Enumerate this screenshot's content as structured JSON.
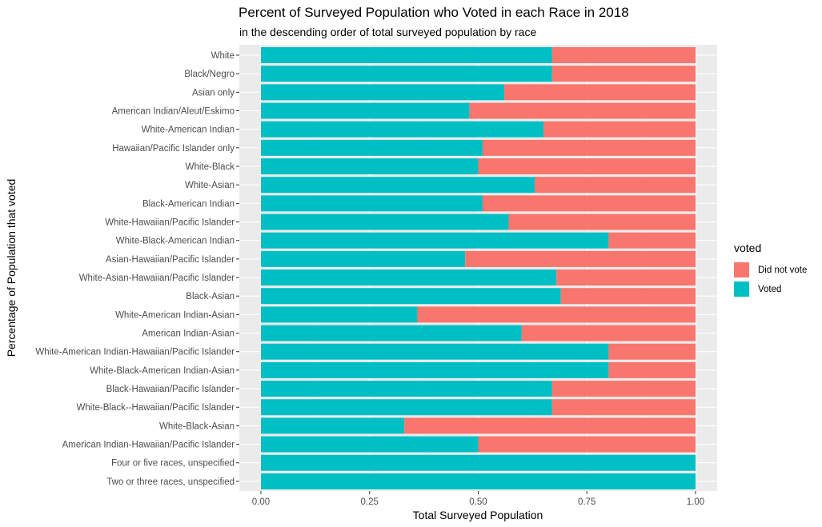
{
  "chart_data": {
    "type": "bar",
    "orientation": "horizontal",
    "stacked": true,
    "title": "Percent of Surveyed Population who Voted in each Race in 2018",
    "subtitle": "in the descending order of total surveyed population by race",
    "xlabel": "Total Surveyed Population",
    "ylabel": "Percentage of Population that voted",
    "xlim": [
      0,
      1
    ],
    "xticks": [
      "0.00",
      "0.25",
      "0.50",
      "0.75",
      "1.00"
    ],
    "grid": true,
    "legend_position": "right",
    "legend_title": "voted",
    "categories": [
      "White",
      "Black/Negro",
      "Asian only",
      "American Indian/Aleut/Eskimo",
      "White-American Indian",
      "Hawaiian/Pacific Islander only",
      "White-Black",
      "White-Asian",
      "Black-American Indian",
      "White-Hawaiian/Pacific Islander",
      "White-Black-American Indian",
      "Asian-Hawaiian/Pacific Islander",
      "White-Asian-Hawaiian/Pacific Islander",
      "Black-Asian",
      "White-American Indian-Asian",
      "American Indian-Asian",
      "White-American Indian-Hawaiian/Pacific Islander",
      "White-Black-American Indian-Asian",
      "Black-Hawaiian/Pacific Islander",
      "White-Black--Hawaiian/Pacific Islander",
      "White-Black-Asian",
      "American Indian-Hawaiian/Pacific Islander",
      "Four or five races, unspecified",
      "Two or three races, unspecified"
    ],
    "series": [
      {
        "name": "Voted",
        "color": "#00BFC4",
        "values": [
          0.67,
          0.67,
          0.56,
          0.48,
          0.65,
          0.51,
          0.5,
          0.63,
          0.51,
          0.57,
          0.8,
          0.47,
          0.68,
          0.69,
          0.36,
          0.6,
          0.8,
          0.8,
          0.67,
          0.67,
          0.33,
          0.5,
          1.0,
          1.0
        ]
      },
      {
        "name": "Did not vote",
        "color": "#F8766D",
        "values": [
          0.33,
          0.33,
          0.44,
          0.52,
          0.35,
          0.49,
          0.5,
          0.37,
          0.49,
          0.43,
          0.2,
          0.53,
          0.32,
          0.31,
          0.64,
          0.4,
          0.2,
          0.2,
          0.33,
          0.33,
          0.67,
          0.5,
          0.0,
          0.0
        ]
      }
    ]
  }
}
